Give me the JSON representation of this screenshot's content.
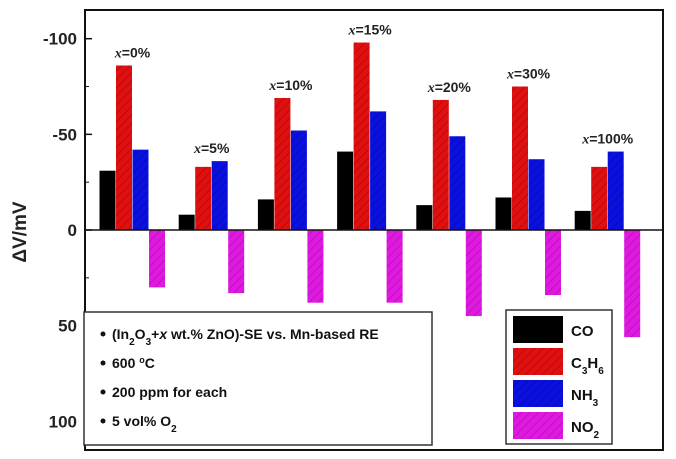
{
  "chart_data": {
    "type": "bar",
    "ylabel": "ΔV/mV",
    "y_inverted": true,
    "ylim": [
      -115,
      115
    ],
    "yticks": [
      -100,
      -50,
      0,
      50,
      100
    ],
    "ytick_labels": [
      "-100",
      "-50",
      "0",
      "50",
      "100"
    ],
    "categories": [
      "x=0%",
      "x=5%",
      "x=10%",
      "x=15%",
      "x=20%",
      "x=30%",
      "x=100%"
    ],
    "series": [
      {
        "name": "CO",
        "color": "#000000",
        "values": [
          -31,
          -8,
          -16,
          -41,
          -13,
          -17,
          -10
        ]
      },
      {
        "name": "C3H6",
        "color": "#e01010",
        "values": [
          -86,
          -33,
          -69,
          -98,
          -68,
          -75,
          -33
        ]
      },
      {
        "name": "NH3",
        "color": "#0a10e0",
        "values": [
          -42,
          -36,
          -52,
          -62,
          -49,
          -37,
          -41
        ]
      },
      {
        "name": "NO2",
        "color": "#e019e0",
        "values": [
          30,
          33,
          38,
          38,
          45,
          34,
          56
        ]
      }
    ],
    "legend_placement": "bottom-right",
    "grid": false
  },
  "legend": {
    "items": [
      {
        "label": "CO",
        "sub": ""
      },
      {
        "label": "C",
        "sub": "3",
        "label2": "H",
        "sub2": "6"
      },
      {
        "label": "NH",
        "sub": "3"
      },
      {
        "label": "NO",
        "sub": "2"
      }
    ]
  },
  "annotation": {
    "lines": [
      "(In2O3+x wt.% ZnO)-SE vs. Mn-based RE",
      "600 °C",
      "200 ppm for each",
      "5 vol% O2"
    ]
  }
}
